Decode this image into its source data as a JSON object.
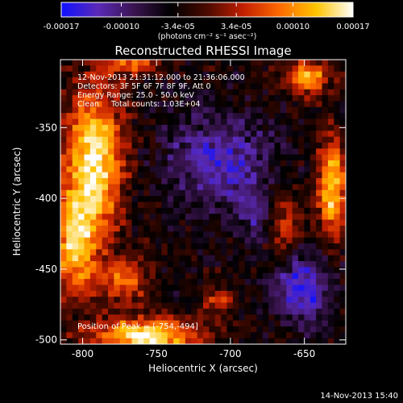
{
  "chart_data": {
    "type": "heatmap",
    "title": "Reconstructed RHESSI Image",
    "xlabel": "Heliocentric X (arcsec)",
    "ylabel": "Heliocentric Y (arcsec)",
    "xlim": [
      -815,
      -622
    ],
    "ylim": [
      -503,
      -302
    ],
    "x_ticks": [
      -800,
      -750,
      -700,
      -650
    ],
    "y_ticks": [
      -350,
      -400,
      -450,
      -500
    ],
    "colorbar": {
      "min": -0.00017,
      "max": 0.00017,
      "tick_values": [
        -0.00017,
        -0.0001,
        -3.4e-05,
        3.4e-05,
        0.0001,
        0.00017
      ],
      "tick_labels": [
        "-0.00017",
        "-0.00010",
        "-3.4e-05",
        "3.4e-05",
        "0.00010",
        "0.00017"
      ],
      "unit_label": "(photons cm⁻² s⁻¹ asec⁻²)",
      "colors": [
        "#1010ff",
        "#5a2ab8",
        "#3a1450",
        "#000000",
        "#4a0a00",
        "#c42000",
        "#ff6a00",
        "#ffc400",
        "#ffffff"
      ]
    },
    "annotations": [
      "12-Nov-2013 21:31:12.000 to 21:36:06.000",
      "Detectors: 3F 5F 6F 7F 8F 9F, Att 0",
      "Energy Range: 25.0 - 50.0 keV",
      "Clean     Total counts: 1.03E+04"
    ],
    "peak_label": "Position of Peak = [-754,-494]"
  },
  "footer": {
    "timestamp": "14-Nov-2013 15:40"
  }
}
